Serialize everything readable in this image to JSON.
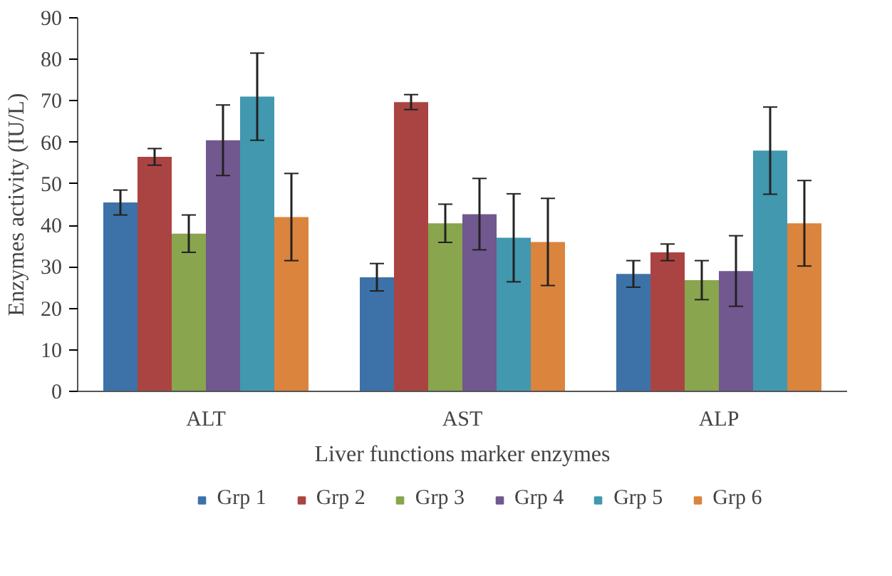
{
  "chart_data": {
    "type": "bar",
    "xlabel": "Liver functions marker enzymes",
    "ylabel": "Enzymes activity (IU/L)",
    "categories": [
      "ALT",
      "AST",
      "ALP"
    ],
    "series": [
      {
        "name": "Grp 1",
        "color": "#3d72a8",
        "values": [
          45.5,
          27.5,
          28.3
        ],
        "errors": [
          3,
          3.3,
          3.2
        ]
      },
      {
        "name": "Grp 2",
        "color": "#aa4442",
        "values": [
          56.5,
          69.7,
          33.5
        ],
        "errors": [
          2,
          1.8,
          2
        ]
      },
      {
        "name": "Grp 3",
        "color": "#89a54e",
        "values": [
          38,
          40.5,
          26.8
        ],
        "errors": [
          4.5,
          4.6,
          4.7
        ]
      },
      {
        "name": "Grp 4",
        "color": "#71588f",
        "values": [
          60.5,
          42.7,
          29
        ],
        "errors": [
          8.5,
          8.6,
          8.5
        ]
      },
      {
        "name": "Grp 5",
        "color": "#4198af",
        "values": [
          71,
          37,
          58
        ],
        "errors": [
          10.5,
          10.6,
          10.5
        ]
      },
      {
        "name": "Grp 6",
        "color": "#db843d",
        "values": [
          42,
          36,
          40.5
        ],
        "errors": [
          10.5,
          10.5,
          10.3
        ]
      }
    ],
    "ylim": [
      0,
      90
    ],
    "yticks": [
      0,
      10,
      20,
      30,
      40,
      50,
      60,
      70,
      80,
      90
    ],
    "grid": false,
    "legend": "bottom"
  }
}
